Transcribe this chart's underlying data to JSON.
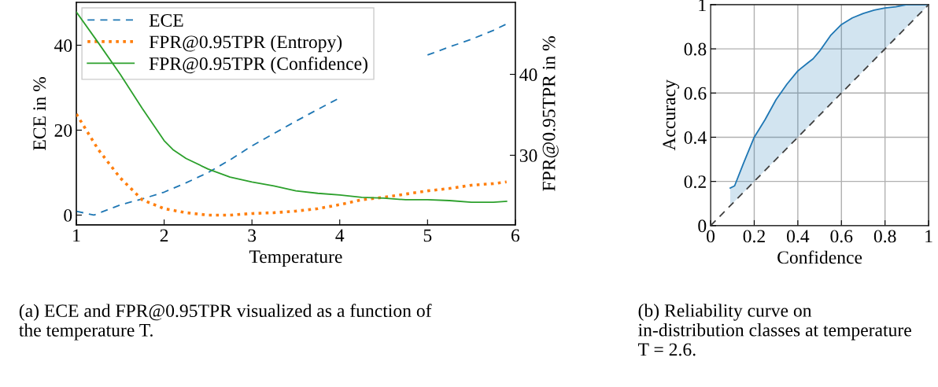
{
  "chart_data": [
    {
      "type": "line",
      "xlabel": "Temperature",
      "ylabel": "ECE in %",
      "y2label": "FPR@0.95TPR in %",
      "xlim": [
        1,
        6
      ],
      "xticks": [
        1,
        2,
        3,
        4,
        5,
        6
      ],
      "ylim": [
        -2.3,
        50.1
      ],
      "yticks": [
        0,
        20,
        40
      ],
      "y2lim": [
        21.4,
        48.9
      ],
      "y2ticks": [
        30,
        40
      ],
      "grid": false,
      "legend": "top left",
      "series": [
        {
          "name": "ECE",
          "color": "#1f77b4",
          "line_style": "dashed",
          "x": [
            1,
            1.2,
            1.5,
            1.75,
            2,
            2.25,
            2.5,
            2.75,
            3,
            3.25,
            3.5,
            3.75,
            4,
            4.25,
            4.5,
            4.75,
            5,
            5.25,
            5.5,
            5.75,
            5.9
          ],
          "values": [
            0.9,
            0,
            2.4,
            3.8,
            5.4,
            7.6,
            10,
            13,
            16.3,
            19.2,
            22.1,
            24.9,
            27.6,
            null,
            null,
            null,
            37.7,
            39.6,
            41.4,
            43.5,
            45
          ]
        },
        {
          "name": "FPR@0.95TPR (Entropy)",
          "color": "#ff7f0e",
          "line_style": "dotted",
          "axis": "y2",
          "x": [
            1,
            1.25,
            1.5,
            1.75,
            2,
            2.25,
            2.5,
            2.75,
            3,
            3.25,
            3.5,
            3.75,
            4,
            4.25,
            4.5,
            4.75,
            5,
            5.25,
            5.5,
            5.75,
            5.9
          ],
          "values": [
            35.1,
            30.7,
            27.2,
            24.5,
            23.4,
            22.9,
            22.6,
            22.6,
            22.8,
            22.9,
            23.1,
            23.4,
            23.9,
            24.5,
            24.8,
            25.2,
            25.6,
            25.9,
            26.3,
            26.5,
            26.7
          ]
        },
        {
          "name": "FPR@0.95TPR (Confidence)",
          "color": "#2ca02c",
          "line_style": "solid",
          "axis": "y2",
          "x": [
            1,
            1.25,
            1.5,
            1.75,
            2,
            2.1,
            2.25,
            2.5,
            2.75,
            3,
            3.25,
            3.5,
            3.75,
            4,
            4.25,
            4.5,
            4.75,
            5,
            5.25,
            5.5,
            5.75,
            5.9
          ],
          "values": [
            47.7,
            43.9,
            40.0,
            35.8,
            31.8,
            30.7,
            29.6,
            28.3,
            27.3,
            26.7,
            26.2,
            25.6,
            25.3,
            25.1,
            24.8,
            24.7,
            24.5,
            24.5,
            24.4,
            24.2,
            24.2,
            24.3
          ]
        }
      ],
      "annotations": [
        "(a) ECE and FPR@0.95TPR visualized as a function of the temperature T."
      ]
    },
    {
      "type": "line",
      "xlabel": "Confidence",
      "ylabel": "Accuracy",
      "xlim": [
        0,
        1
      ],
      "xticks": [
        0,
        {
          "value": 0.2,
          "label": "0.2"
        },
        {
          "value": 0.4,
          "label": "0.4"
        },
        {
          "value": 0.6,
          "label": "0.6"
        },
        {
          "value": 0.8,
          "label": "0.8"
        },
        1
      ],
      "ylim": [
        0,
        1
      ],
      "yticks": [
        0,
        {
          "value": 0.2,
          "label": "0.2"
        },
        {
          "value": 0.4,
          "label": "0.4"
        },
        {
          "value": 0.6,
          "label": "0.6"
        },
        {
          "value": 0.8,
          "label": "0.8"
        },
        1
      ],
      "grid": true,
      "series": [
        {
          "color": "#1f77b4",
          "line_style": "solid",
          "x": [
            0.09,
            0.11,
            0.15,
            0.2,
            0.25,
            0.3,
            0.35,
            0.4,
            0.45,
            0.47,
            0.5,
            0.55,
            0.6,
            0.65,
            0.7,
            0.75,
            0.8,
            0.85,
            0.9,
            1.0
          ],
          "values": [
            0.17,
            0.18,
            0.28,
            0.4,
            0.48,
            0.57,
            0.64,
            0.7,
            0.74,
            0.755,
            0.79,
            0.86,
            0.91,
            0.94,
            0.96,
            0.975,
            0.985,
            0.99,
            1.0,
            1.0
          ],
          "lower": [
            0.09,
            0.11,
            0.15,
            0.2,
            0.25,
            0.3,
            0.35,
            0.4,
            0.45,
            0.47,
            0.5,
            0.55,
            0.6,
            0.65,
            0.7,
            0.75,
            0.8,
            0.85,
            0.9,
            1.0
          ],
          "upper": [
            0.17,
            0.18,
            0.28,
            0.4,
            0.48,
            0.57,
            0.64,
            0.7,
            0.74,
            0.755,
            0.79,
            0.86,
            0.91,
            0.94,
            0.96,
            0.975,
            0.985,
            0.99,
            1.0,
            1.0
          ]
        },
        {
          "color": "#404040",
          "line_style": "dashed",
          "x": [
            0,
            1
          ],
          "values": [
            0,
            1
          ]
        }
      ],
      "annotations": [
        "(b) Reliability curve on in-distribution classes at temperature T = 2.6."
      ]
    }
  ]
}
